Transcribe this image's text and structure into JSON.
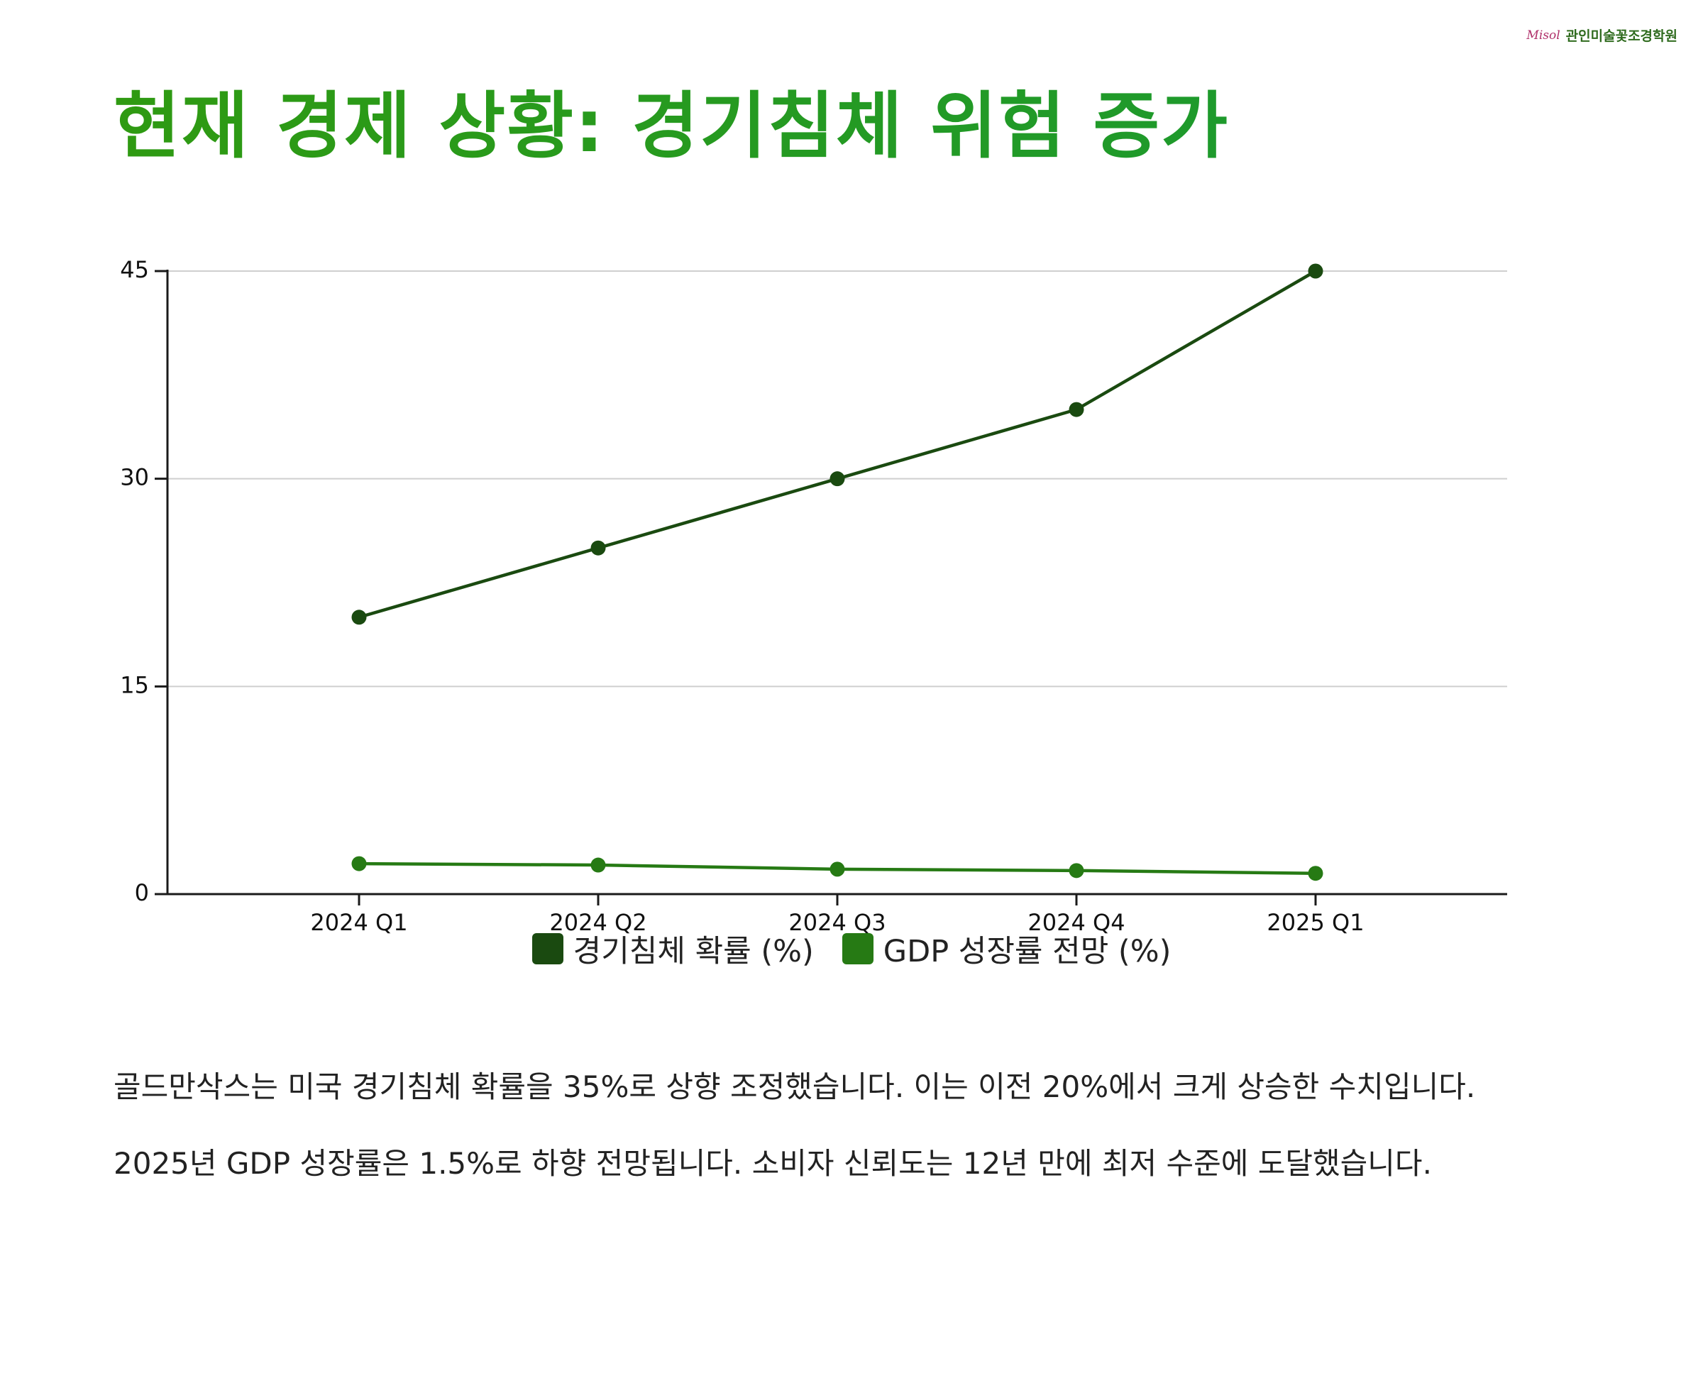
{
  "logo": {
    "mark": "Misol",
    "text": "관인미술꽃조경학원"
  },
  "title": "현재 경제 상황: 경기침체 위험 증가",
  "chart_data": {
    "type": "line",
    "categories": [
      "2024 Q1",
      "2024 Q2",
      "2024 Q3",
      "2024 Q4",
      "2025 Q1"
    ],
    "series": [
      {
        "name": "경기침체 확률 (%)",
        "values": [
          20,
          25,
          30,
          35,
          45
        ],
        "color": "#1a4a10"
      },
      {
        "name": "GDP 성장률 전망 (%)",
        "values": [
          2.2,
          2.1,
          1.8,
          1.7,
          1.5
        ],
        "color": "#267a14"
      }
    ],
    "yticks": [
      0,
      15,
      30,
      45
    ],
    "ylim": [
      0,
      45
    ],
    "grid": true,
    "legend": "bottom-center"
  },
  "body": {
    "p1": "골드만삭스는 미국 경기침체 확률을 35%로 상향 조정했습니다. 이는 이전 20%에서 크게 상승한 수치입니다.",
    "p2": "2025년 GDP 성장률은 1.5%로 하향 전망됩니다. 소비자 신뢰도는 12년 만에 최저 수준에 도달했습니다."
  }
}
